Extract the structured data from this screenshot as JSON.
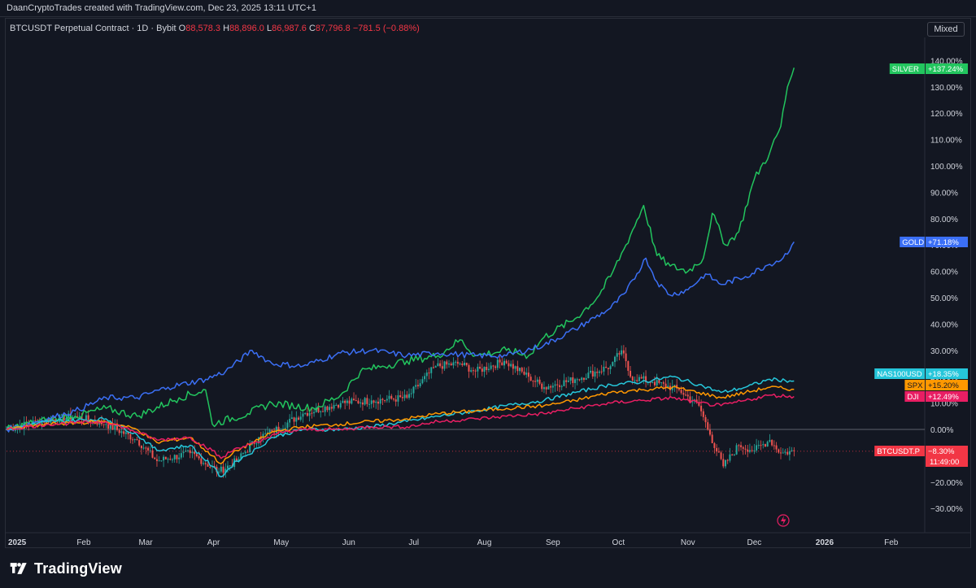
{
  "header": {
    "caption": "DaanCryptoTrades created with TradingView.com, Dec 23, 2025 13:11 UTC+1"
  },
  "legend": {
    "symbol": "BTCUSDT Perpetual Contract · 1D · Bybit",
    "o_label": "O",
    "o_value": "88,578.3",
    "h_label": "H",
    "h_value": "88,896.0",
    "l_label": "L",
    "l_value": "86,987.6",
    "c_label": "C",
    "c_value": "87,796.8",
    "change": "−781.5 (−0.88%)"
  },
  "scale_mode": "Mixed",
  "brand": {
    "name": "TradingView",
    "logo_icon": "tradingview-logo-icon"
  },
  "colors": {
    "background": "#131722",
    "silver": "#22c55e",
    "gold": "#3b6ff5",
    "nas100": "#26c6da",
    "spx": "#ff9800",
    "dji": "#e91e63",
    "btc_up": "#26a69a",
    "btc_down": "#ef5350",
    "btc_badge": "#f23645"
  },
  "chart_data": {
    "type": "line",
    "title": "",
    "y_unit": "%",
    "ylim": [
      -33,
      142
    ],
    "x_range": [
      "2025-01-01",
      "2026-02-28"
    ],
    "x_ticks": [
      "2025",
      "Feb",
      "Mar",
      "Apr",
      "May",
      "Jun",
      "Jul",
      "Aug",
      "Sep",
      "Oct",
      "Nov",
      "Dec",
      "2026",
      "Feb"
    ],
    "y_ticks": [
      "140.00%",
      "130.00%",
      "120.00%",
      "110.00%",
      "100.00%",
      "90.00%",
      "80.00%",
      "70.00%",
      "60.00%",
      "50.00%",
      "40.00%",
      "30.00%",
      "20.00%",
      "10.00%",
      "0.00%",
      "−10.00%",
      "−20.00%",
      "−30.00%"
    ],
    "y_tick_values": [
      140,
      130,
      120,
      110,
      100,
      90,
      80,
      70,
      60,
      50,
      40,
      30,
      20,
      10,
      0,
      -10,
      -20,
      -30
    ],
    "grid": false,
    "series": [
      {
        "name": "SILVER",
        "label": "+137.24%",
        "last": 137.24,
        "color": "#22c55e",
        "points": [
          [
            "2025-01-01",
            0
          ],
          [
            "2025-01-15",
            3
          ],
          [
            "2025-02-01",
            5
          ],
          [
            "2025-02-15",
            8
          ],
          [
            "2025-03-01",
            5
          ],
          [
            "2025-03-20",
            12
          ],
          [
            "2025-04-01",
            15
          ],
          [
            "2025-04-04",
            2
          ],
          [
            "2025-04-20",
            6
          ],
          [
            "2025-05-01",
            10
          ],
          [
            "2025-05-20",
            8
          ],
          [
            "2025-06-01",
            13
          ],
          [
            "2025-06-10",
            22
          ],
          [
            "2025-06-20",
            24
          ],
          [
            "2025-07-01",
            26
          ],
          [
            "2025-07-15",
            28
          ],
          [
            "2025-07-25",
            34
          ],
          [
            "2025-08-01",
            28
          ],
          [
            "2025-08-15",
            30
          ],
          [
            "2025-08-25",
            28
          ],
          [
            "2025-09-01",
            35
          ],
          [
            "2025-09-15",
            42
          ],
          [
            "2025-09-25",
            50
          ],
          [
            "2025-10-01",
            58
          ],
          [
            "2025-10-08",
            70
          ],
          [
            "2025-10-16",
            85
          ],
          [
            "2025-10-22",
            66
          ],
          [
            "2025-10-28",
            62
          ],
          [
            "2025-11-05",
            60
          ],
          [
            "2025-11-12",
            65
          ],
          [
            "2025-11-16",
            82
          ],
          [
            "2025-11-22",
            70
          ],
          [
            "2025-11-28",
            75
          ],
          [
            "2025-12-05",
            95
          ],
          [
            "2025-12-12",
            105
          ],
          [
            "2025-12-17",
            115
          ],
          [
            "2025-12-20",
            130
          ],
          [
            "2025-12-23",
            137.24
          ]
        ]
      },
      {
        "name": "GOLD",
        "label": "+71.18%",
        "last": 71.18,
        "color": "#3b6ff5",
        "points": [
          [
            "2025-01-01",
            0
          ],
          [
            "2025-01-15",
            3
          ],
          [
            "2025-02-01",
            7
          ],
          [
            "2025-02-15",
            12
          ],
          [
            "2025-03-01",
            12
          ],
          [
            "2025-03-15",
            16
          ],
          [
            "2025-04-01",
            19
          ],
          [
            "2025-04-10",
            22
          ],
          [
            "2025-04-22",
            30
          ],
          [
            "2025-05-01",
            25
          ],
          [
            "2025-05-15",
            24
          ],
          [
            "2025-06-01",
            29
          ],
          [
            "2025-06-15",
            30
          ],
          [
            "2025-07-01",
            28
          ],
          [
            "2025-07-15",
            29
          ],
          [
            "2025-08-01",
            28
          ],
          [
            "2025-08-15",
            28
          ],
          [
            "2025-09-01",
            32
          ],
          [
            "2025-09-15",
            38
          ],
          [
            "2025-10-01",
            46
          ],
          [
            "2025-10-08",
            52
          ],
          [
            "2025-10-17",
            65
          ],
          [
            "2025-10-22",
            56
          ],
          [
            "2025-10-28",
            51
          ],
          [
            "2025-11-05",
            53
          ],
          [
            "2025-11-13",
            59
          ],
          [
            "2025-11-20",
            55
          ],
          [
            "2025-12-01",
            58
          ],
          [
            "2025-12-10",
            62
          ],
          [
            "2025-12-18",
            65
          ],
          [
            "2025-12-23",
            71.18
          ]
        ]
      },
      {
        "name": "NAS100USD",
        "label": "+18.35%",
        "last": 18.35,
        "color": "#26c6da",
        "points": [
          [
            "2025-01-01",
            0
          ],
          [
            "2025-01-20",
            3
          ],
          [
            "2025-02-15",
            4
          ],
          [
            "2025-03-01",
            -2
          ],
          [
            "2025-03-10",
            -8
          ],
          [
            "2025-03-25",
            -6
          ],
          [
            "2025-04-04",
            -14
          ],
          [
            "2025-04-08",
            -18
          ],
          [
            "2025-04-15",
            -12
          ],
          [
            "2025-04-25",
            -7
          ],
          [
            "2025-05-01",
            -3
          ],
          [
            "2025-05-15",
            0
          ],
          [
            "2025-06-01",
            0
          ],
          [
            "2025-06-15",
            1
          ],
          [
            "2025-07-01",
            3
          ],
          [
            "2025-07-15",
            5
          ],
          [
            "2025-08-01",
            7
          ],
          [
            "2025-08-15",
            9
          ],
          [
            "2025-09-01",
            11
          ],
          [
            "2025-09-15",
            14
          ],
          [
            "2025-10-01",
            17
          ],
          [
            "2025-10-15",
            18
          ],
          [
            "2025-10-29",
            20
          ],
          [
            "2025-11-10",
            17
          ],
          [
            "2025-11-20",
            14
          ],
          [
            "2025-12-01",
            16
          ],
          [
            "2025-12-12",
            19
          ],
          [
            "2025-12-23",
            18.35
          ]
        ]
      },
      {
        "name": "SPX",
        "label": "+15.20%",
        "last": 15.2,
        "color": "#ff9800",
        "points": [
          [
            "2025-01-01",
            0
          ],
          [
            "2025-01-20",
            2
          ],
          [
            "2025-02-15",
            3
          ],
          [
            "2025-03-01",
            0
          ],
          [
            "2025-03-10",
            -5
          ],
          [
            "2025-03-25",
            -3
          ],
          [
            "2025-04-04",
            -10
          ],
          [
            "2025-04-08",
            -13
          ],
          [
            "2025-04-15",
            -8
          ],
          [
            "2025-04-25",
            -4
          ],
          [
            "2025-05-01",
            -1
          ],
          [
            "2025-05-15",
            1
          ],
          [
            "2025-06-01",
            2
          ],
          [
            "2025-06-15",
            3
          ],
          [
            "2025-07-01",
            4
          ],
          [
            "2025-07-15",
            6
          ],
          [
            "2025-08-01",
            7
          ],
          [
            "2025-08-15",
            8
          ],
          [
            "2025-09-01",
            9
          ],
          [
            "2025-09-15",
            11
          ],
          [
            "2025-10-01",
            14
          ],
          [
            "2025-10-15",
            15
          ],
          [
            "2025-10-29",
            16
          ],
          [
            "2025-11-10",
            14
          ],
          [
            "2025-11-20",
            12
          ],
          [
            "2025-12-01",
            14
          ],
          [
            "2025-12-12",
            16
          ],
          [
            "2025-12-23",
            15.2
          ]
        ]
      },
      {
        "name": "DJI",
        "label": "+12.49%",
        "last": 12.49,
        "color": "#e91e63",
        "points": [
          [
            "2025-01-01",
            0
          ],
          [
            "2025-01-20",
            2
          ],
          [
            "2025-02-15",
            3
          ],
          [
            "2025-03-01",
            -1
          ],
          [
            "2025-03-10",
            -4
          ],
          [
            "2025-03-25",
            -3
          ],
          [
            "2025-04-04",
            -8
          ],
          [
            "2025-04-08",
            -11
          ],
          [
            "2025-04-15",
            -7
          ],
          [
            "2025-04-25",
            -5
          ],
          [
            "2025-05-01",
            -2
          ],
          [
            "2025-05-15",
            0
          ],
          [
            "2025-06-01",
            0
          ],
          [
            "2025-06-15",
            1
          ],
          [
            "2025-07-01",
            1
          ],
          [
            "2025-07-15",
            3
          ],
          [
            "2025-08-01",
            4
          ],
          [
            "2025-08-15",
            5
          ],
          [
            "2025-09-01",
            6
          ],
          [
            "2025-09-15",
            8
          ],
          [
            "2025-10-01",
            10
          ],
          [
            "2025-10-15",
            11
          ],
          [
            "2025-10-29",
            12
          ],
          [
            "2025-11-10",
            10
          ],
          [
            "2025-11-20",
            9
          ],
          [
            "2025-12-01",
            11
          ],
          [
            "2025-12-12",
            13
          ],
          [
            "2025-12-23",
            12.49
          ]
        ]
      },
      {
        "name": "BTCUSDT.P",
        "label": "−8.30%",
        "last": -8.3,
        "sub_label": "11:49:00",
        "color": "#f23645",
        "style": "candles",
        "points": [
          [
            "2025-01-01",
            0
          ],
          [
            "2025-01-15",
            3
          ],
          [
            "2025-02-01",
            5
          ],
          [
            "2025-02-15",
            2
          ],
          [
            "2025-03-01",
            -4
          ],
          [
            "2025-03-10",
            -12
          ],
          [
            "2025-03-25",
            -9
          ],
          [
            "2025-04-07",
            -16
          ],
          [
            "2025-04-15",
            -12
          ],
          [
            "2025-04-25",
            -3
          ],
          [
            "2025-05-01",
            -1
          ],
          [
            "2025-05-15",
            6
          ],
          [
            "2025-06-01",
            10
          ],
          [
            "2025-06-15",
            11
          ],
          [
            "2025-07-01",
            12
          ],
          [
            "2025-07-14",
            24
          ],
          [
            "2025-07-25",
            25
          ],
          [
            "2025-08-01",
            22
          ],
          [
            "2025-08-14",
            26
          ],
          [
            "2025-08-25",
            20
          ],
          [
            "2025-09-01",
            16
          ],
          [
            "2025-09-15",
            19
          ],
          [
            "2025-10-01",
            24
          ],
          [
            "2025-10-06",
            30
          ],
          [
            "2025-10-10",
            20
          ],
          [
            "2025-10-20",
            18
          ],
          [
            "2025-11-01",
            15
          ],
          [
            "2025-11-10",
            9
          ],
          [
            "2025-11-15",
            -2
          ],
          [
            "2025-11-21",
            -14
          ],
          [
            "2025-11-28",
            -6
          ],
          [
            "2025-12-05",
            -8
          ],
          [
            "2025-12-12",
            -4
          ],
          [
            "2025-12-17",
            -9
          ],
          [
            "2025-12-23",
            -8.3
          ]
        ]
      }
    ]
  }
}
